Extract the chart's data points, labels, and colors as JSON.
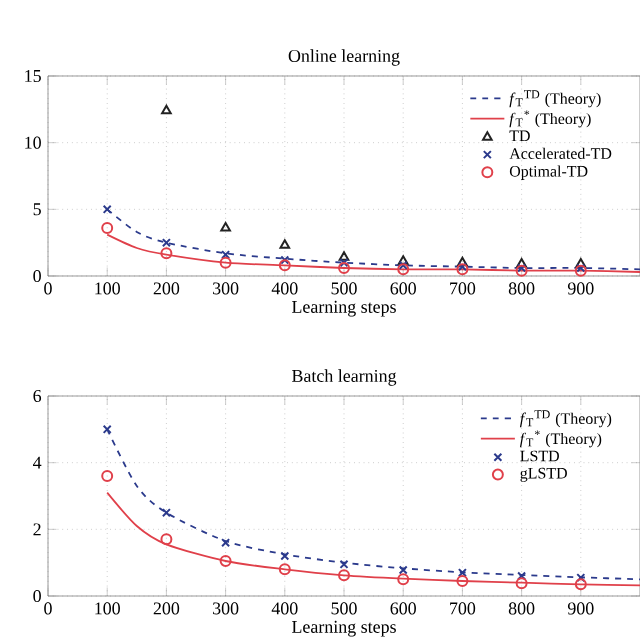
{
  "chart_data": [
    {
      "type": "scatter",
      "title": "Online learning",
      "xlabel": "Learning steps",
      "x": [
        100,
        200,
        300,
        400,
        500,
        600,
        700,
        800,
        900
      ],
      "xlim": [
        0,
        1000
      ],
      "xticks": [
        0,
        100,
        200,
        300,
        400,
        500,
        600,
        700,
        800,
        900
      ],
      "ylim": [
        0,
        15
      ],
      "yticks": [
        0,
        5,
        10,
        15
      ],
      "grid": true,
      "legend": "top right",
      "series": [
        {
          "name": "*f*$_{T}$$^{TD}$ (Theory)",
          "type": "line",
          "color": "#2b3a8c",
          "line_style": "dashed",
          "marker": "none",
          "x": [
            100,
            150,
            200,
            300,
            400,
            500,
            600,
            700,
            800,
            900,
            1000
          ],
          "values": [
            5.0,
            3.3,
            2.5,
            1.7,
            1.3,
            1.0,
            0.8,
            0.7,
            0.6,
            0.6,
            0.5
          ]
        },
        {
          "name": "*f*$_{T}$$^{*}$ (Theory)",
          "type": "line",
          "color": "#e0404a",
          "line_style": "solid",
          "marker": "none",
          "x": [
            100,
            150,
            200,
            300,
            400,
            500,
            600,
            700,
            800,
            900,
            1000
          ],
          "values": [
            3.1,
            2.1,
            1.6,
            1.0,
            0.8,
            0.6,
            0.5,
            0.5,
            0.4,
            0.4,
            0.3
          ]
        },
        {
          "name": "TD",
          "color": "#222222",
          "marker": "triangle",
          "values": [
            null,
            12.4,
            3.6,
            2.3,
            1.4,
            1.1,
            1.0,
            0.9,
            0.9
          ]
        },
        {
          "name": "Accelerated-TD",
          "color": "#2b3a8c",
          "marker": "cross",
          "values": [
            5.0,
            2.5,
            1.6,
            1.2,
            1.0,
            0.8,
            0.7,
            0.6,
            0.6
          ]
        },
        {
          "name": "Optimal-TD",
          "color": "#e0404a",
          "marker": "circle",
          "values": [
            3.6,
            1.7,
            1.0,
            0.8,
            0.6,
            0.5,
            0.5,
            0.4,
            0.4
          ]
        }
      ]
    },
    {
      "type": "scatter",
      "title": "Batch learning",
      "xlabel": "Learning steps",
      "x": [
        100,
        200,
        300,
        400,
        500,
        600,
        700,
        800,
        900
      ],
      "xlim": [
        0,
        1000
      ],
      "xticks": [
        0,
        100,
        200,
        300,
        400,
        500,
        600,
        700,
        800,
        900
      ],
      "ylim": [
        0,
        6
      ],
      "yticks": [
        0,
        2,
        4,
        6
      ],
      "grid": true,
      "legend": "top right",
      "series": [
        {
          "name": "*f*$_{T}$$^{TD}$ (Theory)",
          "type": "line",
          "color": "#2b3a8c",
          "line_style": "dashed",
          "marker": "none",
          "x": [
            100,
            150,
            200,
            300,
            400,
            500,
            600,
            700,
            800,
            900,
            1000
          ],
          "values": [
            5.0,
            3.3,
            2.5,
            1.65,
            1.25,
            1.0,
            0.83,
            0.71,
            0.63,
            0.56,
            0.5
          ]
        },
        {
          "name": "*f*$_{T}$$^{*}$ (Theory)",
          "type": "line",
          "color": "#e0404a",
          "line_style": "solid",
          "marker": "none",
          "x": [
            100,
            150,
            200,
            300,
            400,
            500,
            600,
            700,
            800,
            900,
            1000
          ],
          "values": [
            3.1,
            2.1,
            1.55,
            1.05,
            0.8,
            0.62,
            0.52,
            0.45,
            0.4,
            0.35,
            0.32
          ]
        },
        {
          "name": "LSTD",
          "color": "#2b3a8c",
          "marker": "cross",
          "values": [
            5.0,
            2.5,
            1.6,
            1.2,
            0.95,
            0.78,
            0.7,
            0.6,
            0.55
          ]
        },
        {
          "name": "gLSTD",
          "color": "#e0404a",
          "marker": "circle",
          "values": [
            3.6,
            1.7,
            1.05,
            0.8,
            0.62,
            0.5,
            0.45,
            0.38,
            0.35
          ]
        }
      ]
    }
  ]
}
